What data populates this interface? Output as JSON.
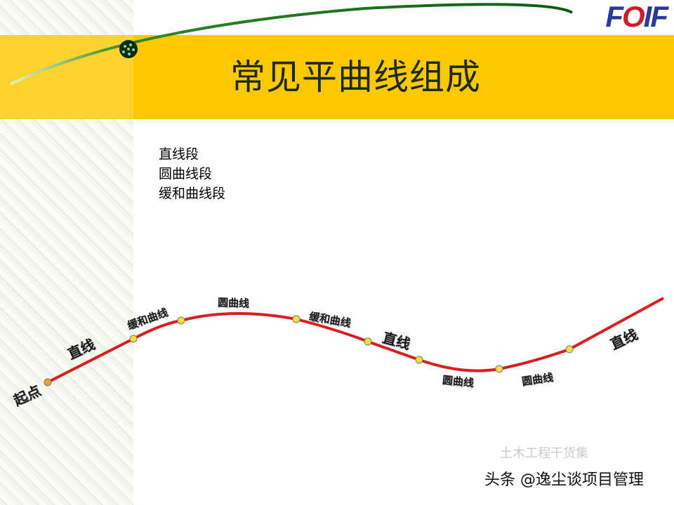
{
  "slide": {
    "title": "常见平曲线组成",
    "logo": {
      "f": "F",
      "o": "O",
      "if": "IF",
      "text": "FOIF"
    },
    "bullets": [
      "直线段",
      "圆曲线段",
      "缓和曲线段"
    ]
  },
  "diagram": {
    "labels": {
      "start": "起点",
      "straight_1": "直线",
      "transition_1": "缓和曲线",
      "circular_1": "圆曲线",
      "transition_2": "缓和曲线",
      "straight_2": "直线",
      "circular_2": "圆曲线",
      "circular_3": "圆曲线",
      "straight_3": "直线"
    },
    "colors": {
      "curve": "#d81e1e",
      "point": "#f5e03a",
      "band": "#fcc800"
    }
  },
  "watermark": {
    "main": "头条 @逸尘谈项目管理",
    "faint": "土木工程干货集"
  }
}
